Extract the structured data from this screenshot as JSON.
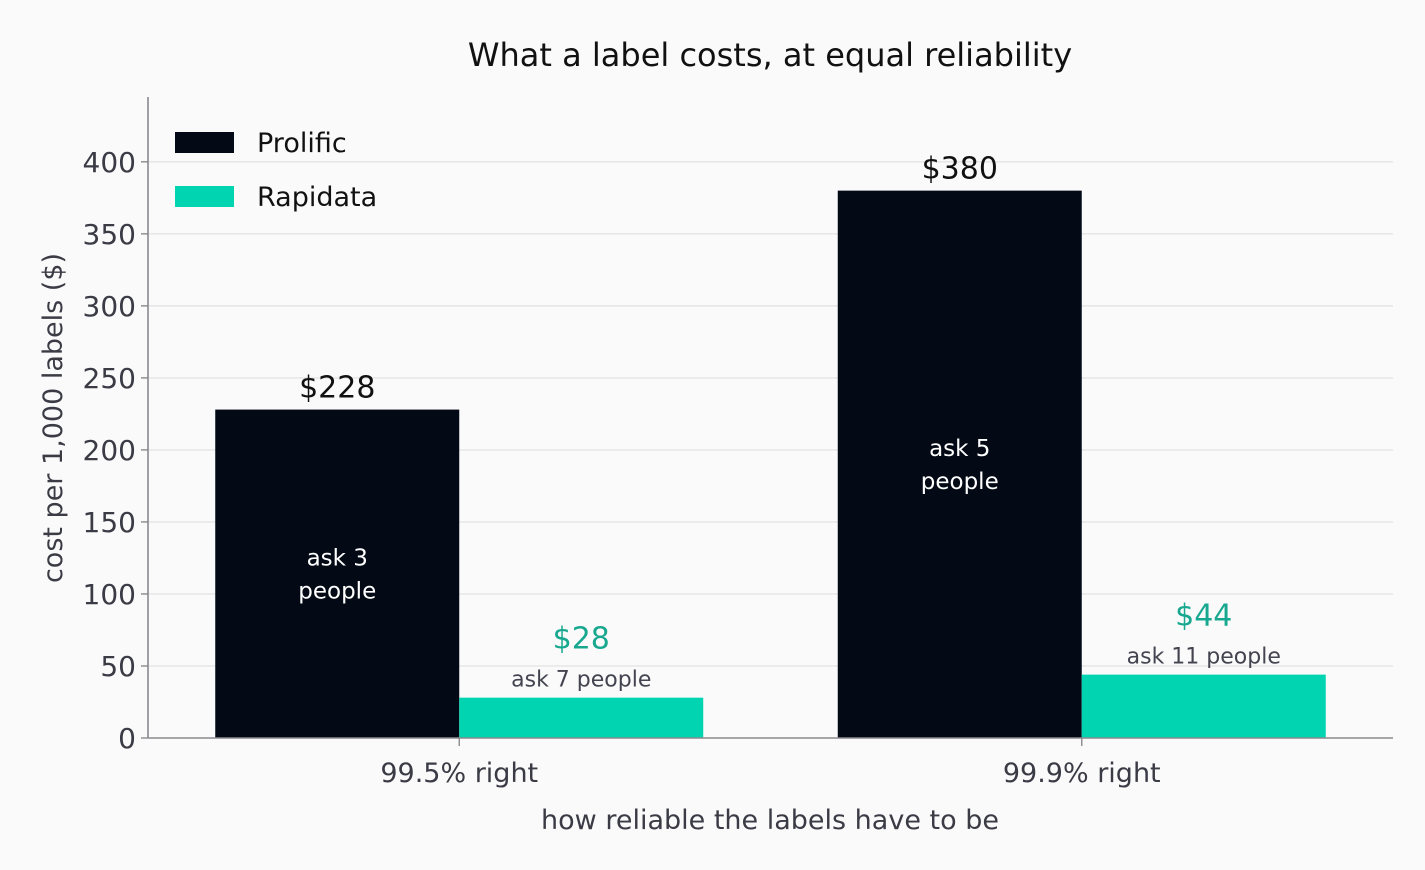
{
  "chart_data": {
    "type": "bar",
    "title": "What a label costs, at equal reliability",
    "xlabel": "how reliable the labels have to be",
    "ylabel": "cost per 1,000 labels ($)",
    "categories": [
      "99.5% right",
      "99.9% right"
    ],
    "ylim": [
      0,
      445
    ],
    "yticks": [
      0,
      50,
      100,
      150,
      200,
      250,
      300,
      350,
      400
    ],
    "grid": true,
    "legend_position": "top-left",
    "series": [
      {
        "name": "Prolific",
        "color": "#030a16",
        "values": [
          228,
          380
        ],
        "value_labels": [
          "$228",
          "$380"
        ],
        "value_label_color": "#111111",
        "inner_labels": [
          [
            "ask 3",
            "people"
          ],
          [
            "ask 5",
            "people"
          ]
        ]
      },
      {
        "name": "Rapidata",
        "color": "#00d4b0",
        "values": [
          28,
          44
        ],
        "value_labels": [
          "$28",
          "$44"
        ],
        "value_label_color": "#17a88f",
        "sub_labels": [
          "ask 7 people",
          "ask 11 people"
        ]
      }
    ]
  }
}
